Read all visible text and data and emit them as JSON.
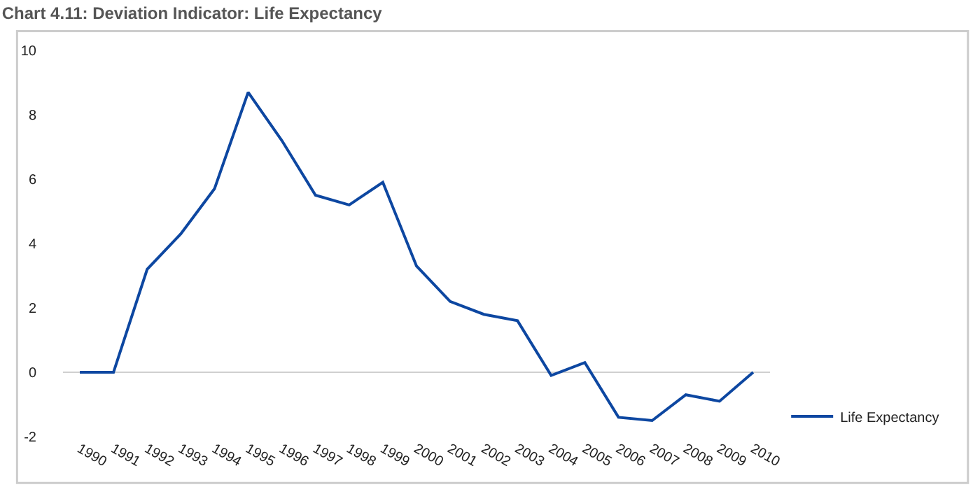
{
  "chart_data": {
    "type": "line",
    "title": "Chart 4.11: Deviation Indicator: Life Expectancy",
    "categories": [
      "1990",
      "1991",
      "1992",
      "1993",
      "1994",
      "1995",
      "1996",
      "1997",
      "1998",
      "1999",
      "2000",
      "2001",
      "2002",
      "2003",
      "2004",
      "2005",
      "2006",
      "2007",
      "2008",
      "2009",
      "2010"
    ],
    "series": [
      {
        "name": "Life Expectancy",
        "color": "#0d47a1",
        "values": [
          0,
          0,
          3.2,
          4.3,
          5.7,
          8.7,
          7.2,
          5.5,
          5.2,
          5.9,
          3.3,
          2.2,
          1.8,
          1.6,
          -0.1,
          0.3,
          -1.4,
          -1.5,
          -0.7,
          -0.9,
          0
        ]
      }
    ],
    "ylim": [
      -2,
      10
    ],
    "yticks": [
      -2,
      0,
      2,
      4,
      6,
      8,
      10
    ],
    "grid": false,
    "legend": "bottom right",
    "marker": "none",
    "line_style": "solid",
    "ref_lines": [
      {
        "axis": "y",
        "value": 0,
        "label": null,
        "color": "#d0d0d0"
      }
    ]
  }
}
